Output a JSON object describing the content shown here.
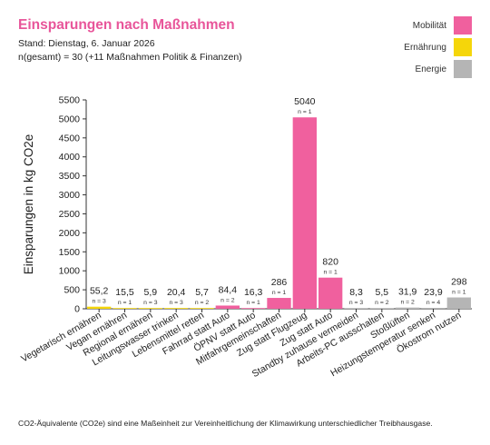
{
  "header": {
    "title": "Einsparungen nach Maßnahmen",
    "subtitle_date": "Stand: Dienstag, 6. Januar 2026",
    "subtitle_n": "n(gesamt) = 30 (+11 Maßnahmen Politik & Finanzen)"
  },
  "legend": [
    {
      "label": "Mobilität",
      "color": "#f0609e"
    },
    {
      "label": "Ernährung",
      "color": "#f5d60a"
    },
    {
      "label": "Energie",
      "color": "#b5b5b5"
    }
  ],
  "footnote": "CO2-Äquivalente (CO2e) sind eine Maßeinheit zur Vereinheitlichung der Klimawirkung unterschiedlicher Treibhausgase.",
  "chart_data": {
    "type": "bar",
    "ylabel": "Einsparungen in kg CO2e",
    "ylim": [
      0,
      5500
    ],
    "yticks": [
      0,
      500,
      1000,
      1500,
      2000,
      2500,
      3000,
      3500,
      4000,
      4500,
      5000,
      5500
    ],
    "legend_position": "top-right",
    "grid": false,
    "categories": [
      "Vegetarisch ernähren",
      "Vegan ernähren",
      "Regional ernähren",
      "Leitungswasser trinken",
      "Lebensmittel retten",
      "Fahrrad statt Auto",
      "ÖPNV statt Auto",
      "Mitfahrgemeinschaften",
      "Zug statt Flugzeug",
      "Zug statt Auto",
      "Standby zuhause vermeiden",
      "Arbeits-PC ausschalten",
      "Stoßlüften",
      "Heizungstemperatur senken",
      "Ökostrom nutzen"
    ],
    "values": [
      55.2,
      15.5,
      5.9,
      20.4,
      5.7,
      84.4,
      16.3,
      286,
      5040,
      820,
      8.3,
      5.5,
      31.9,
      23.9,
      298
    ],
    "value_labels": [
      "55,2",
      "15,5",
      "5,9",
      "20,4",
      "5,7",
      "84,4",
      "16,3",
      "286",
      "5040",
      "820",
      "8,3",
      "5,5",
      "31,9",
      "23,9",
      "298"
    ],
    "n_labels": [
      "n = 3",
      "n = 1",
      "n = 3",
      "n = 3",
      "n = 2",
      "n = 2",
      "n = 1",
      "n = 1",
      "n = 1",
      "n = 1",
      "n = 3",
      "n = 2",
      "n = 2",
      "n = 4",
      "n = 1"
    ],
    "groups": [
      "Ernährung",
      "Ernährung",
      "Ernährung",
      "Ernährung",
      "Ernährung",
      "Mobilität",
      "Mobilität",
      "Mobilität",
      "Mobilität",
      "Mobilität",
      "Energie",
      "Energie",
      "Energie",
      "Energie",
      "Energie"
    ]
  }
}
